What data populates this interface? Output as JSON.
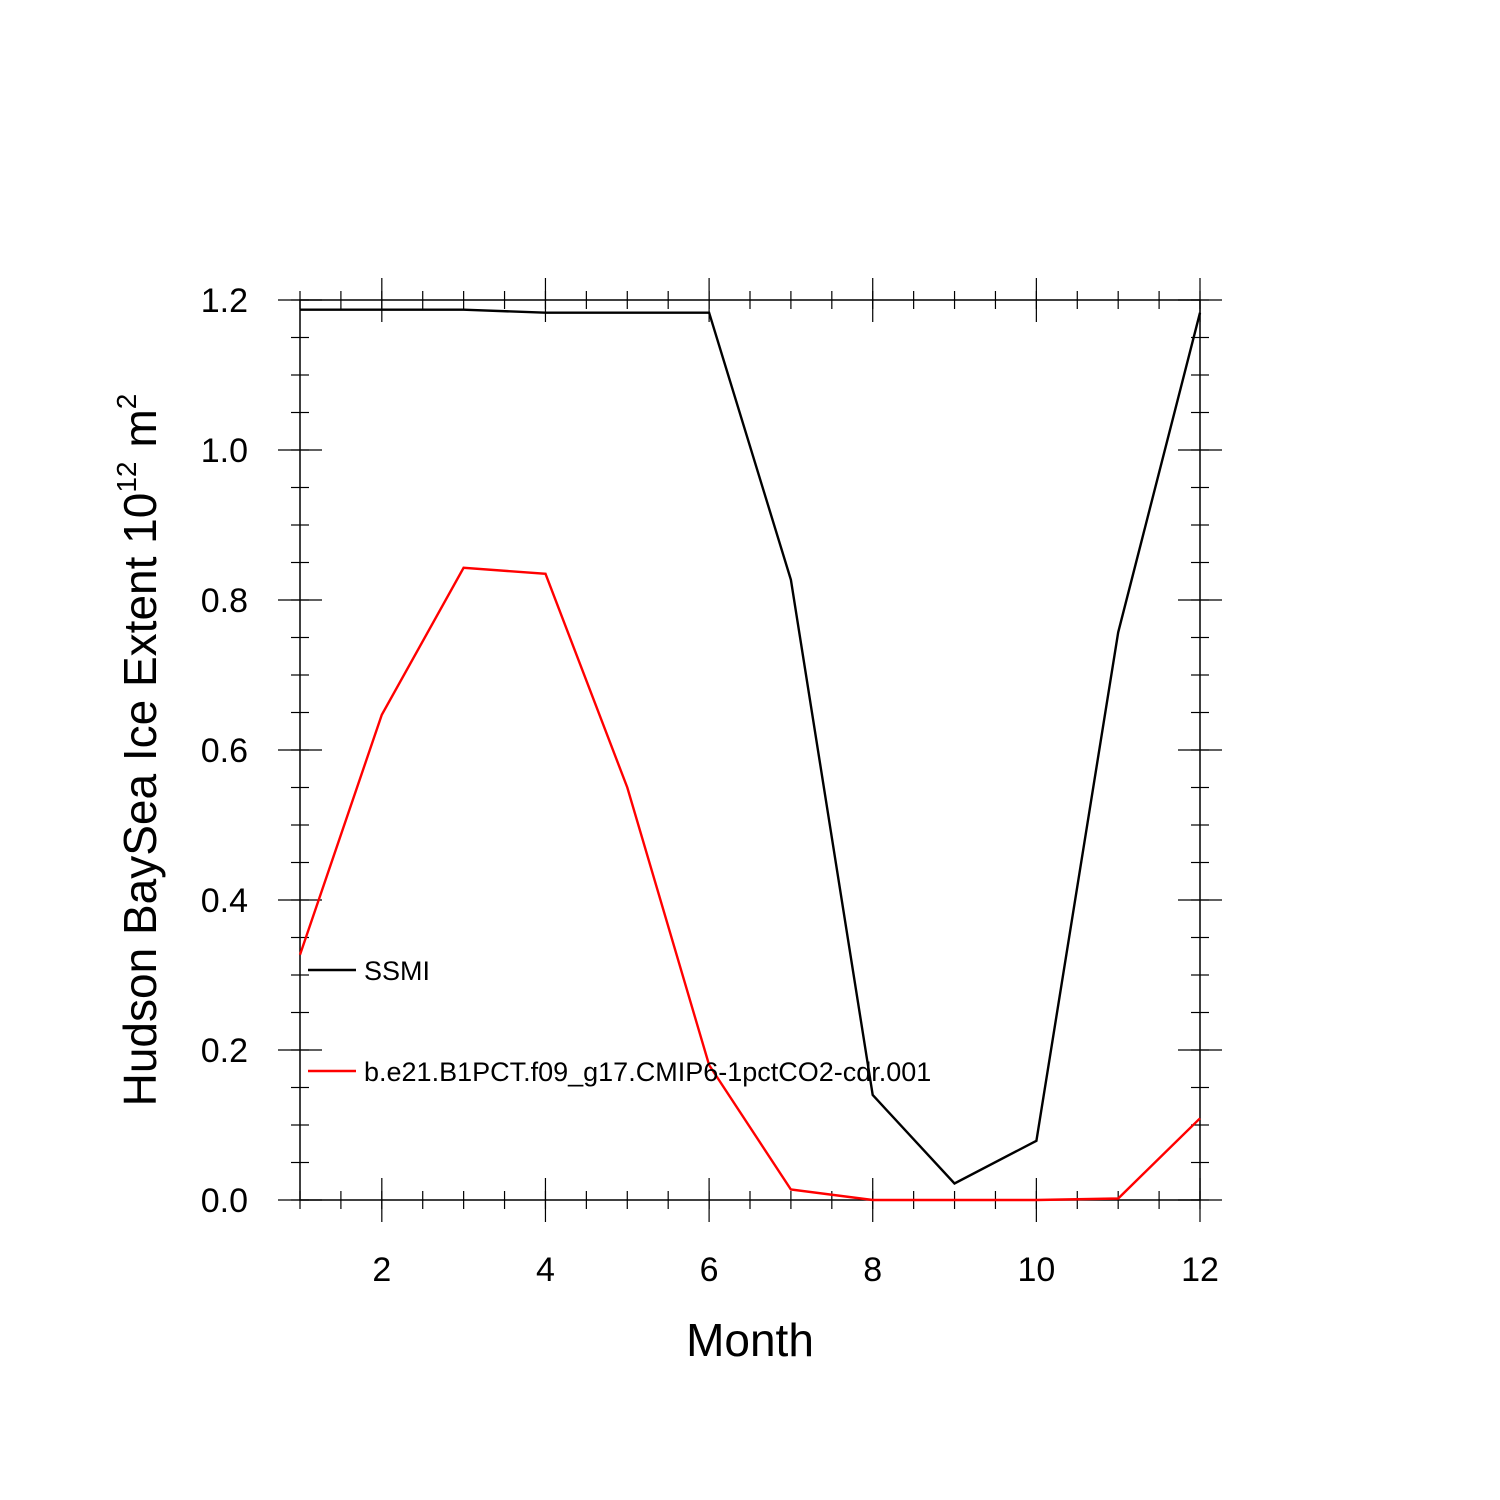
{
  "chart_data": {
    "type": "line",
    "title": "",
    "xlabel": "Month",
    "ylabel": {
      "main": "Hudson BaySea Ice Extent 10",
      "exponent": "12",
      "unit": "m",
      "unit_exponent": "2"
    },
    "xlim": [
      1,
      12
    ],
    "ylim": [
      0,
      1.2
    ],
    "x_ticks": [
      2,
      4,
      6,
      8,
      10,
      12
    ],
    "y_ticks": [
      0.0,
      0.2,
      0.4,
      0.6,
      0.8,
      1.0,
      1.2
    ],
    "x_tick_labels": [
      "2",
      "4",
      "6",
      "8",
      "10",
      "12"
    ],
    "y_tick_labels": [
      "0.0",
      "0.2",
      "0.4",
      "0.6",
      "0.8",
      "1.0",
      "1.2"
    ],
    "x": [
      1,
      2,
      3,
      4,
      5,
      6,
      7,
      8,
      9,
      10,
      11,
      12
    ],
    "series": [
      {
        "name": "SSMI",
        "color": "#000000",
        "values": [
          1.187,
          1.187,
          1.187,
          1.183,
          1.183,
          1.183,
          0.827,
          0.14,
          0.022,
          0.079,
          0.757,
          1.183
        ]
      },
      {
        "name": "b.e21.B1PCT.f09_g17.CMIP6-1pctCO2-cdr.001",
        "color": "#ff0000",
        "values": [
          0.327,
          0.647,
          0.843,
          0.835,
          0.55,
          0.18,
          0.014,
          0.0,
          0.0,
          0.0,
          0.002,
          0.109
        ]
      }
    ],
    "grid": false,
    "legend_position": "lower-left, inside plot"
  }
}
